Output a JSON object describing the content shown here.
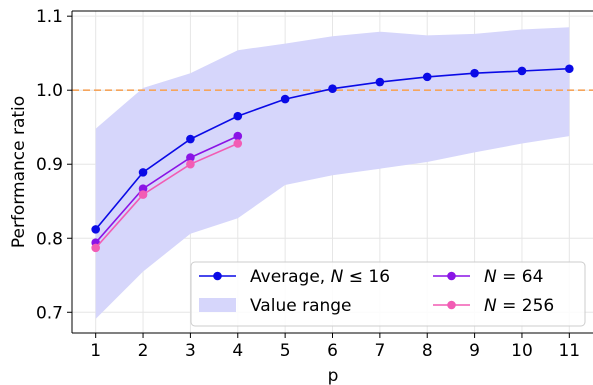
{
  "chart_data": {
    "type": "line",
    "title": "",
    "xlabel": "p",
    "ylabel": "Performance ratio",
    "xlim": [
      0.5,
      11.5
    ],
    "ylim": [
      0.672,
      1.107
    ],
    "x_ticks": [
      1,
      2,
      3,
      4,
      5,
      6,
      7,
      8,
      9,
      10,
      11
    ],
    "y_ticks": [
      0.7,
      0.8,
      0.9,
      1.0,
      1.1
    ],
    "y_tick_labels": [
      "0.7",
      "0.8",
      "0.9",
      "1.0",
      "1.1"
    ],
    "grid": true,
    "reference_line": {
      "y": 1.0,
      "style": "dashed",
      "color": "#f5a55c"
    },
    "band": {
      "name": "Value range",
      "color": "#d6d6fb",
      "x": [
        1,
        2,
        3,
        4,
        5,
        6,
        7,
        8,
        9,
        10,
        11
      ],
      "upper": [
        0.948,
        1.003,
        1.023,
        1.054,
        1.063,
        1.073,
        1.079,
        1.074,
        1.076,
        1.082,
        1.085
      ],
      "lower": [
        0.691,
        0.755,
        0.806,
        0.827,
        0.872,
        0.885,
        0.894,
        0.903,
        0.916,
        0.928,
        0.938
      ]
    },
    "series": [
      {
        "name": "Average, N ≤ 16",
        "color": "#0a0ae6",
        "x": [
          1,
          2,
          3,
          4,
          5,
          6,
          7,
          8,
          9,
          10,
          11
        ],
        "values": [
          0.812,
          0.889,
          0.934,
          0.965,
          0.988,
          1.002,
          1.011,
          1.018,
          1.023,
          1.026,
          1.029
        ]
      },
      {
        "name": "N = 64",
        "color": "#8a14e6",
        "x": [
          1,
          2,
          3,
          4
        ],
        "values": [
          0.794,
          0.867,
          0.909,
          0.938
        ]
      },
      {
        "name": "N = 256",
        "color": "#f25cb4",
        "x": [
          1,
          2,
          3,
          4
        ],
        "values": [
          0.787,
          0.859,
          0.9,
          0.928
        ]
      }
    ],
    "legend": {
      "placement": "lower-right",
      "entries": [
        {
          "kind": "line",
          "series": 0,
          "label": "Average, ",
          "math": "N",
          "suffix": " ≤ 16"
        },
        {
          "kind": "patch",
          "label": "Value range"
        },
        {
          "kind": "line",
          "series": 1,
          "label": "",
          "math": "N",
          "suffix": " = 64"
        },
        {
          "kind": "line",
          "series": 2,
          "label": "",
          "math": "N",
          "suffix": " = 256"
        }
      ]
    }
  }
}
